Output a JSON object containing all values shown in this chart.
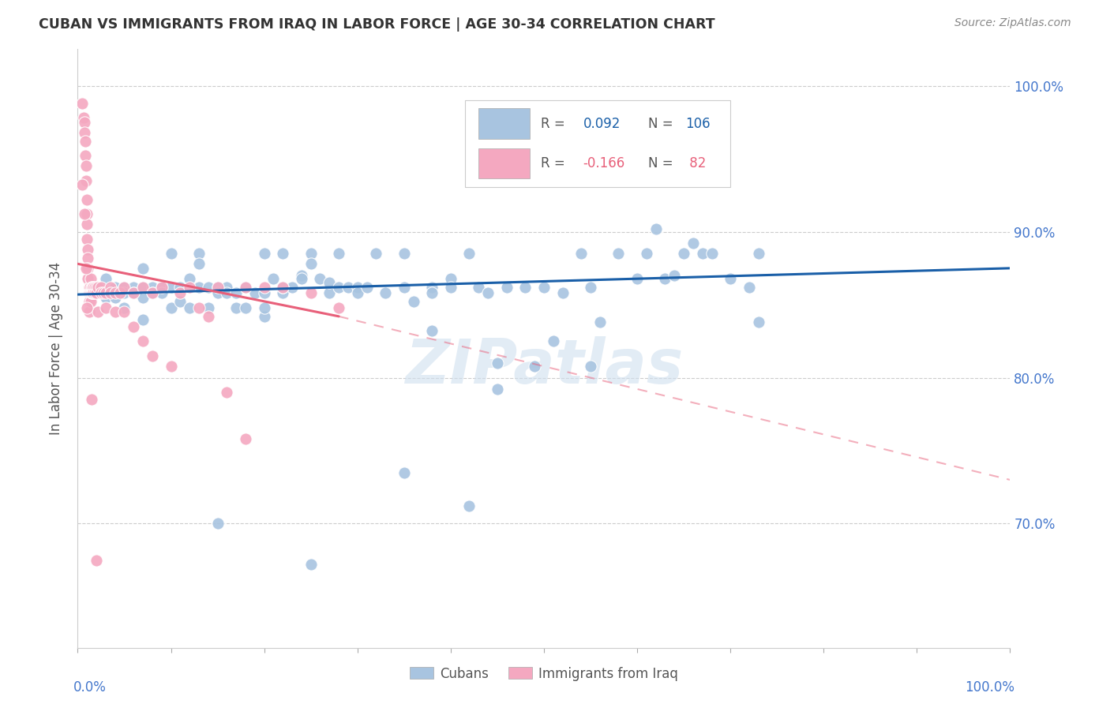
{
  "title": "CUBAN VS IMMIGRANTS FROM IRAQ IN LABOR FORCE | AGE 30-34 CORRELATION CHART",
  "source": "Source: ZipAtlas.com",
  "ylabel": "In Labor Force | Age 30-34",
  "ytick_labels": [
    "100.0%",
    "90.0%",
    "80.0%",
    "70.0%"
  ],
  "ytick_positions": [
    1.0,
    0.9,
    0.8,
    0.7
  ],
  "xlim": [
    0.0,
    1.0
  ],
  "ylim": [
    0.615,
    1.025
  ],
  "watermark": "ZIPatlas",
  "cubans_color": "#a8c4e0",
  "iraq_color": "#f4a8c0",
  "cubans_line_color": "#1a5fa8",
  "iraq_line_color": "#e8607a",
  "cubans_scatter": [
    [
      0.02,
      0.862
    ],
    [
      0.03,
      0.868
    ],
    [
      0.03,
      0.855
    ],
    [
      0.04,
      0.862
    ],
    [
      0.04,
      0.855
    ],
    [
      0.05,
      0.862
    ],
    [
      0.05,
      0.858
    ],
    [
      0.05,
      0.848
    ],
    [
      0.06,
      0.862
    ],
    [
      0.06,
      0.858
    ],
    [
      0.07,
      0.862
    ],
    [
      0.07,
      0.855
    ],
    [
      0.07,
      0.84
    ],
    [
      0.07,
      0.875
    ],
    [
      0.08,
      0.862
    ],
    [
      0.08,
      0.858
    ],
    [
      0.09,
      0.862
    ],
    [
      0.09,
      0.858
    ],
    [
      0.1,
      0.885
    ],
    [
      0.1,
      0.862
    ],
    [
      0.1,
      0.848
    ],
    [
      0.11,
      0.862
    ],
    [
      0.11,
      0.852
    ],
    [
      0.12,
      0.868
    ],
    [
      0.12,
      0.848
    ],
    [
      0.13,
      0.885
    ],
    [
      0.13,
      0.878
    ],
    [
      0.13,
      0.862
    ],
    [
      0.14,
      0.862
    ],
    [
      0.14,
      0.848
    ],
    [
      0.15,
      0.862
    ],
    [
      0.15,
      0.858
    ],
    [
      0.16,
      0.862
    ],
    [
      0.16,
      0.858
    ],
    [
      0.17,
      0.858
    ],
    [
      0.17,
      0.848
    ],
    [
      0.18,
      0.862
    ],
    [
      0.18,
      0.848
    ],
    [
      0.19,
      0.858
    ],
    [
      0.2,
      0.885
    ],
    [
      0.2,
      0.858
    ],
    [
      0.2,
      0.842
    ],
    [
      0.21,
      0.868
    ],
    [
      0.22,
      0.885
    ],
    [
      0.22,
      0.858
    ],
    [
      0.23,
      0.862
    ],
    [
      0.24,
      0.87
    ],
    [
      0.24,
      0.868
    ],
    [
      0.25,
      0.885
    ],
    [
      0.25,
      0.878
    ],
    [
      0.26,
      0.868
    ],
    [
      0.27,
      0.858
    ],
    [
      0.27,
      0.865
    ],
    [
      0.28,
      0.862
    ],
    [
      0.28,
      0.885
    ],
    [
      0.29,
      0.862
    ],
    [
      0.3,
      0.862
    ],
    [
      0.3,
      0.858
    ],
    [
      0.31,
      0.862
    ],
    [
      0.32,
      0.885
    ],
    [
      0.33,
      0.858
    ],
    [
      0.35,
      0.885
    ],
    [
      0.35,
      0.862
    ],
    [
      0.36,
      0.852
    ],
    [
      0.38,
      0.862
    ],
    [
      0.38,
      0.858
    ],
    [
      0.4,
      0.868
    ],
    [
      0.4,
      0.862
    ],
    [
      0.42,
      0.885
    ],
    [
      0.43,
      0.862
    ],
    [
      0.44,
      0.858
    ],
    [
      0.46,
      0.862
    ],
    [
      0.48,
      0.862
    ],
    [
      0.5,
      0.862
    ],
    [
      0.52,
      0.858
    ],
    [
      0.54,
      0.885
    ],
    [
      0.55,
      0.862
    ],
    [
      0.56,
      0.838
    ],
    [
      0.58,
      0.885
    ],
    [
      0.6,
      0.868
    ],
    [
      0.61,
      0.885
    ],
    [
      0.62,
      0.902
    ],
    [
      0.63,
      0.868
    ],
    [
      0.64,
      0.87
    ],
    [
      0.65,
      0.885
    ],
    [
      0.66,
      0.892
    ],
    [
      0.67,
      0.885
    ],
    [
      0.68,
      0.885
    ],
    [
      0.7,
      0.868
    ],
    [
      0.72,
      0.862
    ],
    [
      0.73,
      0.885
    ],
    [
      0.73,
      0.838
    ],
    [
      0.15,
      0.7
    ],
    [
      0.25,
      0.672
    ],
    [
      0.35,
      0.735
    ],
    [
      0.42,
      0.712
    ],
    [
      0.45,
      0.81
    ],
    [
      0.45,
      0.792
    ],
    [
      0.49,
      0.808
    ],
    [
      0.51,
      0.825
    ],
    [
      0.55,
      0.808
    ],
    [
      0.38,
      0.832
    ],
    [
      0.2,
      0.848
    ],
    [
      0.22,
      0.862
    ]
  ],
  "iraq_scatter": [
    [
      0.005,
      0.988
    ],
    [
      0.006,
      0.978
    ],
    [
      0.007,
      0.975
    ],
    [
      0.007,
      0.968
    ],
    [
      0.008,
      0.962
    ],
    [
      0.008,
      0.952
    ],
    [
      0.009,
      0.945
    ],
    [
      0.009,
      0.935
    ],
    [
      0.01,
      0.922
    ],
    [
      0.01,
      0.912
    ],
    [
      0.01,
      0.905
    ],
    [
      0.01,
      0.895
    ],
    [
      0.011,
      0.888
    ],
    [
      0.011,
      0.882
    ],
    [
      0.011,
      0.875
    ],
    [
      0.011,
      0.868
    ],
    [
      0.012,
      0.862
    ],
    [
      0.012,
      0.858
    ],
    [
      0.012,
      0.852
    ],
    [
      0.012,
      0.845
    ],
    [
      0.013,
      0.862
    ],
    [
      0.013,
      0.858
    ],
    [
      0.014,
      0.868
    ],
    [
      0.014,
      0.858
    ],
    [
      0.014,
      0.852
    ],
    [
      0.015,
      0.862
    ],
    [
      0.015,
      0.858
    ],
    [
      0.016,
      0.862
    ],
    [
      0.016,
      0.858
    ],
    [
      0.017,
      0.862
    ],
    [
      0.017,
      0.858
    ],
    [
      0.018,
      0.862
    ],
    [
      0.018,
      0.858
    ],
    [
      0.02,
      0.862
    ],
    [
      0.02,
      0.858
    ],
    [
      0.022,
      0.862
    ],
    [
      0.022,
      0.845
    ],
    [
      0.025,
      0.862
    ],
    [
      0.025,
      0.858
    ],
    [
      0.028,
      0.858
    ],
    [
      0.03,
      0.858
    ],
    [
      0.03,
      0.848
    ],
    [
      0.035,
      0.862
    ],
    [
      0.035,
      0.858
    ],
    [
      0.04,
      0.858
    ],
    [
      0.04,
      0.845
    ],
    [
      0.045,
      0.858
    ],
    [
      0.05,
      0.862
    ],
    [
      0.05,
      0.845
    ],
    [
      0.06,
      0.858
    ],
    [
      0.06,
      0.835
    ],
    [
      0.07,
      0.862
    ],
    [
      0.07,
      0.825
    ],
    [
      0.08,
      0.858
    ],
    [
      0.08,
      0.815
    ],
    [
      0.09,
      0.862
    ],
    [
      0.1,
      0.808
    ],
    [
      0.11,
      0.858
    ],
    [
      0.12,
      0.862
    ],
    [
      0.13,
      0.848
    ],
    [
      0.14,
      0.842
    ],
    [
      0.15,
      0.862
    ],
    [
      0.16,
      0.79
    ],
    [
      0.18,
      0.862
    ],
    [
      0.18,
      0.758
    ],
    [
      0.2,
      0.862
    ],
    [
      0.22,
      0.862
    ],
    [
      0.25,
      0.858
    ],
    [
      0.28,
      0.848
    ],
    [
      0.005,
      0.932
    ],
    [
      0.007,
      0.912
    ],
    [
      0.009,
      0.875
    ],
    [
      0.01,
      0.848
    ],
    [
      0.015,
      0.785
    ],
    [
      0.02,
      0.675
    ]
  ],
  "cubans_trendline_solid": [
    [
      0.0,
      0.857
    ],
    [
      1.0,
      0.875
    ]
  ],
  "iraq_trendline_solid": [
    [
      0.0,
      0.878
    ],
    [
      0.28,
      0.842
    ]
  ],
  "iraq_trendline_dashed": [
    [
      0.28,
      0.842
    ],
    [
      1.0,
      0.73
    ]
  ]
}
